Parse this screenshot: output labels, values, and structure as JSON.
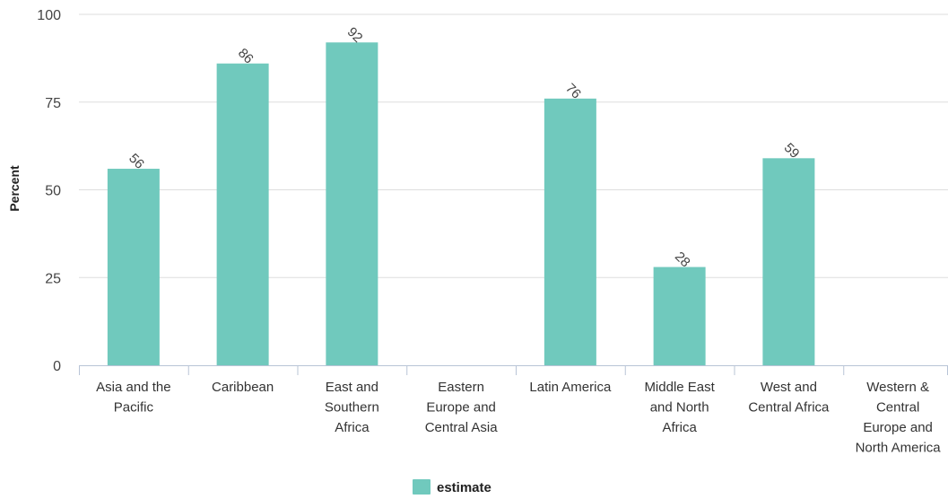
{
  "chart_data": {
    "type": "bar",
    "ylabel": "Percent",
    "ylim": [
      0,
      100
    ],
    "yticks": [
      0,
      25,
      50,
      75,
      100
    ],
    "categories": [
      [
        "Asia and the",
        "Pacific"
      ],
      [
        "Caribbean"
      ],
      [
        "East and",
        "Southern",
        "Africa"
      ],
      [
        "Eastern",
        "Europe and",
        "Central Asia"
      ],
      [
        "Latin America"
      ],
      [
        "Middle East",
        "and North",
        "Africa"
      ],
      [
        "West and",
        "Central Africa"
      ],
      [
        "Western &",
        "Central",
        "Europe and",
        "North America"
      ]
    ],
    "series": [
      {
        "name": "estimate",
        "color": "#70c9bd",
        "values": [
          56,
          86,
          92,
          null,
          76,
          28,
          59,
          null
        ],
        "labels": [
          "56",
          "86",
          "92",
          "",
          "76",
          "28",
          "59",
          ""
        ]
      }
    ],
    "grid": true,
    "legend": "bottom-center"
  }
}
